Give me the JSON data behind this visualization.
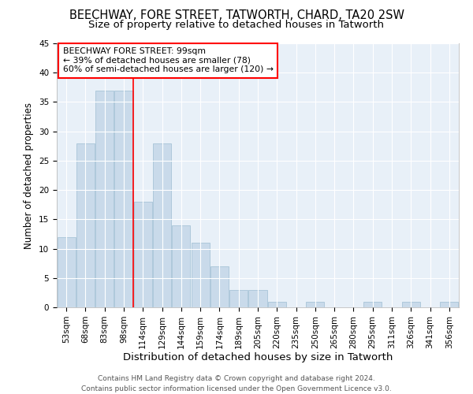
{
  "title": "BEECHWAY, FORE STREET, TATWORTH, CHARD, TA20 2SW",
  "subtitle": "Size of property relative to detached houses in Tatworth",
  "xlabel": "Distribution of detached houses by size in Tatworth",
  "ylabel": "Number of detached properties",
  "categories": [
    "53sqm",
    "68sqm",
    "83sqm",
    "98sqm",
    "114sqm",
    "129sqm",
    "144sqm",
    "159sqm",
    "174sqm",
    "189sqm",
    "205sqm",
    "220sqm",
    "235sqm",
    "250sqm",
    "265sqm",
    "280sqm",
    "295sqm",
    "311sqm",
    "326sqm",
    "341sqm",
    "356sqm"
  ],
  "values": [
    12,
    28,
    37,
    37,
    18,
    28,
    14,
    11,
    7,
    3,
    3,
    1,
    0,
    1,
    0,
    0,
    1,
    0,
    1,
    0,
    1
  ],
  "bar_color": "#c9daea",
  "bar_edge_color": "#a8c4d8",
  "ylim": [
    0,
    45
  ],
  "yticks": [
    0,
    5,
    10,
    15,
    20,
    25,
    30,
    35,
    40,
    45
  ],
  "red_line_x": 3.5,
  "annotation_title": "BEECHWAY FORE STREET: 99sqm",
  "annotation_line1": "← 39% of detached houses are smaller (78)",
  "annotation_line2": "60% of semi-detached houses are larger (120) →",
  "footer_line1": "Contains HM Land Registry data © Crown copyright and database right 2024.",
  "footer_line2": "Contains public sector information licensed under the Open Government Licence v3.0.",
  "bg_color": "#ffffff",
  "plot_bg_color": "#e8f0f8",
  "grid_color": "#ffffff",
  "title_fontsize": 10.5,
  "subtitle_fontsize": 9.5,
  "xlabel_fontsize": 9.5,
  "ylabel_fontsize": 8.5,
  "tick_fontsize": 7.5,
  "footer_fontsize": 6.5
}
